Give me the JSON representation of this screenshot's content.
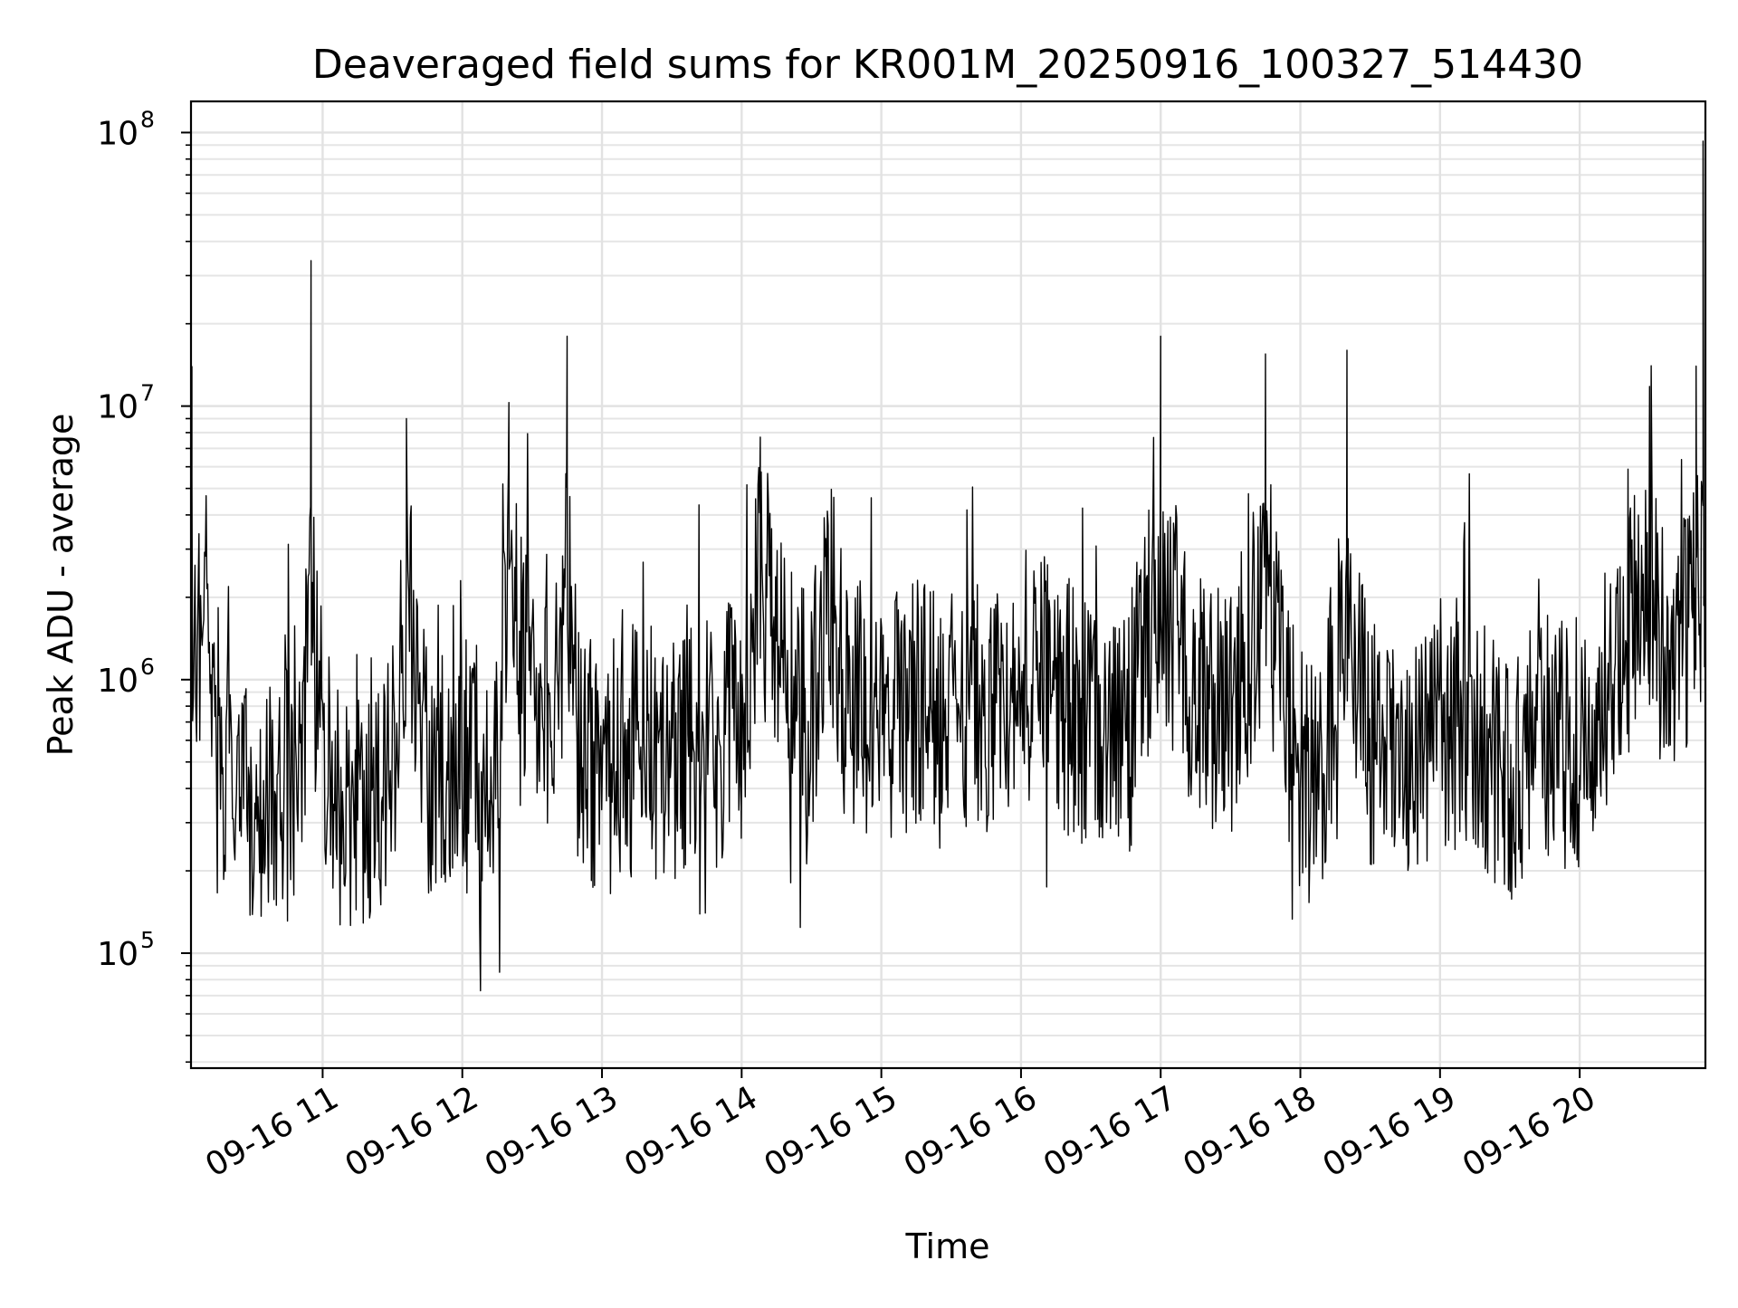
{
  "chart_data": {
    "type": "line",
    "title": "Deaveraged field sums for KR001M_20250916_100327_514430",
    "xlabel": "Time",
    "ylabel": "Peak ADU - average",
    "yscale": "log",
    "ylim": [
      38000,
      130000000
    ],
    "xlim": [
      "2025-09-16 10:03:27",
      "2025-09-16 20:54:00"
    ],
    "grid": true,
    "line_color": "#000000",
    "x_ticks": [
      {
        "x": "2025-09-16 11:00",
        "label": "09-16 11"
      },
      {
        "x": "2025-09-16 12:00",
        "label": "09-16 12"
      },
      {
        "x": "2025-09-16 13:00",
        "label": "09-16 13"
      },
      {
        "x": "2025-09-16 14:00",
        "label": "09-16 14"
      },
      {
        "x": "2025-09-16 15:00",
        "label": "09-16 15"
      },
      {
        "x": "2025-09-16 16:00",
        "label": "09-16 16"
      },
      {
        "x": "2025-09-16 17:00",
        "label": "09-16 17"
      },
      {
        "x": "2025-09-16 18:00",
        "label": "09-16 18"
      },
      {
        "x": "2025-09-16 19:00",
        "label": "09-16 19"
      },
      {
        "x": "2025-09-16 20:00",
        "label": "09-16 20"
      }
    ],
    "y_ticks": [
      {
        "value": 100000,
        "base": "10",
        "exp": "5"
      },
      {
        "value": 1000000,
        "base": "10",
        "exp": "6"
      },
      {
        "value": 10000000,
        "base": "10",
        "exp": "7"
      },
      {
        "value": 100000000,
        "base": "10",
        "exp": "8"
      }
    ],
    "series": [
      {
        "x": [
          "2025-09-16 10:03",
          "2025-09-16 10:05",
          "2025-09-16 10:10",
          "2025-09-16 10:14",
          "2025-09-16 10:20",
          "2025-09-16 10:30",
          "2025-09-16 10:40",
          "2025-09-16 10:50",
          "2025-09-16 10:55",
          "2025-09-16 11:00",
          "2025-09-16 11:10",
          "2025-09-16 11:20",
          "2025-09-16 11:30",
          "2025-09-16 11:36",
          "2025-09-16 11:45",
          "2025-09-16 12:00",
          "2025-09-16 12:15",
          "2025-09-16 12:20",
          "2025-09-16 12:30",
          "2025-09-16 12:40",
          "2025-09-16 12:45",
          "2025-09-16 12:50",
          "2025-09-16 13:00",
          "2025-09-16 13:15",
          "2025-09-16 13:30",
          "2025-09-16 13:45",
          "2025-09-16 14:00",
          "2025-09-16 14:08",
          "2025-09-16 14:20",
          "2025-09-16 14:30",
          "2025-09-16 14:37",
          "2025-09-16 14:45",
          "2025-09-16 15:00",
          "2025-09-16 15:15",
          "2025-09-16 15:30",
          "2025-09-16 15:45",
          "2025-09-16 16:00",
          "2025-09-16 16:15",
          "2025-09-16 16:29",
          "2025-09-16 16:45",
          "2025-09-16 17:00",
          "2025-09-16 17:15",
          "2025-09-16 17:30",
          "2025-09-16 17:45",
          "2025-09-16 18:00",
          "2025-09-16 18:10",
          "2025-09-16 18:20",
          "2025-09-16 18:30",
          "2025-09-16 18:45",
          "2025-09-16 19:00",
          "2025-09-16 19:15",
          "2025-09-16 19:30",
          "2025-09-16 19:45",
          "2025-09-16 20:00",
          "2025-09-16 20:15",
          "2025-09-16 20:30",
          "2025-09-16 20:40",
          "2025-09-16 20:50",
          "2025-09-16 20:53"
        ],
        "y": [
          14000000,
          1500000,
          2400000,
          700000,
          450000,
          300000,
          400000,
          350000,
          34000000,
          350000,
          300000,
          400000,
          450000,
          9000000,
          420000,
          500000,
          400000,
          10300000,
          900000,
          800000,
          18000000,
          600000,
          450000,
          550000,
          500000,
          550000,
          700000,
          7700000,
          900000,
          650000,
          2500000,
          800000,
          750000,
          800000,
          800000,
          800000,
          1100000,
          900000,
          650000,
          600000,
          18000000,
          900000,
          700000,
          15500000,
          450000,
          450000,
          16000000,
          550000,
          500000,
          750000,
          650000,
          400000,
          600000,
          600000,
          1100000,
          11800000,
          900000,
          14000000,
          93000000
        ]
      }
    ]
  }
}
